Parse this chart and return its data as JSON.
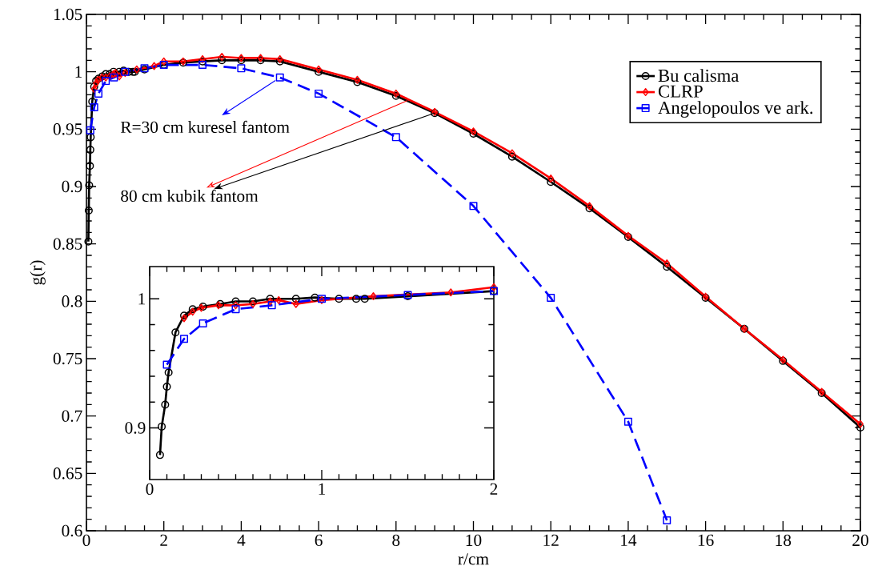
{
  "chart_data": [
    {
      "type": "line",
      "xlabel": "r/cm",
      "ylabel": "g(r)",
      "xlim": [
        0,
        20
      ],
      "xticks": [
        0,
        2,
        4,
        6,
        8,
        10,
        12,
        14,
        16,
        18,
        20
      ],
      "ylim": [
        0.6,
        1.05
      ],
      "yticks": [
        0.6,
        0.65,
        0.7,
        0.75,
        0.8,
        0.85,
        0.9,
        0.95,
        1,
        1.05
      ],
      "legend": "top right",
      "annotations": [
        {
          "text": "R=30 cm kuresel fantom",
          "x": 5,
          "y": 0.995
        },
        {
          "text": "80 cm kubik fantom",
          "x": 9,
          "y": 0.964
        }
      ],
      "series": [
        {
          "name": "Bu calisma",
          "color": "#000000",
          "marker": "circle",
          "line_style": "solid",
          "x": [
            0.05,
            0.06,
            0.07,
            0.09,
            0.1,
            0.11,
            0.15,
            0.2,
            0.25,
            0.31,
            0.41,
            0.5,
            0.6,
            0.7,
            0.85,
            0.96,
            1.1,
            1.2,
            1.25,
            1.5,
            2,
            2.5,
            3,
            3.5,
            4,
            4.5,
            5,
            6,
            7,
            8,
            9,
            10,
            11,
            12,
            13,
            14,
            15,
            16,
            17,
            18,
            19,
            20
          ],
          "values": [
            0.852,
            0.879,
            0.901,
            0.918,
            0.932,
            0.943,
            0.974,
            0.987,
            0.992,
            0.994,
            0.996,
            0.998,
            0.998,
            1.0,
            1.0,
            1.001,
            1.0,
            1.0,
            1.0,
            1.002,
            1.006,
            1.008,
            1.009,
            1.01,
            1.01,
            1.01,
            1.009,
            1.0,
            0.991,
            0.979,
            0.964,
            0.946,
            0.926,
            0.904,
            0.881,
            0.856,
            0.83,
            0.803,
            0.776,
            0.748,
            0.72,
            0.69
          ]
        },
        {
          "name": "CLRP",
          "color": "#ff0000",
          "marker": "diamond",
          "line_style": "solid",
          "x": [
            0.2,
            0.25,
            0.3,
            0.4,
            0.5,
            0.6,
            0.7,
            0.75,
            0.85,
            1,
            1.3,
            1.75,
            2,
            2.5,
            3,
            3.5,
            4,
            4.5,
            5,
            6,
            7,
            8,
            9,
            10,
            11,
            12,
            13,
            14,
            15,
            16,
            17,
            18,
            19,
            20
          ],
          "values": [
            0.985,
            0.99,
            0.993,
            0.995,
            0.995,
            0.996,
            0.998,
            0.999,
            0.996,
            0.999,
            1.002,
            1.005,
            1.009,
            1.009,
            1.011,
            1.013,
            1.012,
            1.012,
            1.011,
            1.002,
            0.993,
            0.981,
            0.965,
            0.948,
            0.929,
            0.907,
            0.883,
            0.857,
            0.833,
            0.804,
            0.776,
            0.749,
            0.721,
            0.693
          ]
        },
        {
          "name": "Angelopoulos ve ark.",
          "color": "#0000ff",
          "marker": "square",
          "line_style": "dashed",
          "x": [
            0.1,
            0.2,
            0.31,
            0.5,
            0.71,
            1,
            1.5,
            2,
            3,
            4,
            5,
            6,
            8,
            10,
            12,
            14,
            15
          ],
          "values": [
            0.949,
            0.969,
            0.981,
            0.992,
            0.995,
            1.0,
            1.003,
            1.006,
            1.006,
            1.003,
            0.995,
            0.981,
            0.943,
            0.883,
            0.803,
            0.695,
            0.609
          ]
        }
      ]
    },
    {
      "type": "line",
      "xlim": [
        0,
        2
      ],
      "xticks": [
        0,
        1,
        2
      ],
      "ylim": [
        0.86,
        1.025
      ],
      "yticks": [
        0.9,
        1
      ],
      "series": [
        {
          "color": "#000000",
          "marker": "circle",
          "line_style": "solid",
          "x": [
            0.06,
            0.07,
            0.09,
            0.1,
            0.11,
            0.15,
            0.2,
            0.25,
            0.31,
            0.41,
            0.5,
            0.6,
            0.7,
            0.85,
            0.96,
            1.1,
            1.2,
            1.25,
            1.5,
            2
          ],
          "values": [
            0.879,
            0.901,
            0.918,
            0.932,
            0.943,
            0.974,
            0.987,
            0.992,
            0.994,
            0.996,
            0.998,
            0.998,
            1.0,
            1.0,
            1.001,
            1.0,
            1.0,
            1.0,
            1.002,
            1.006
          ]
        },
        {
          "color": "#ff0000",
          "marker": "diamond",
          "line_style": "solid",
          "x": [
            0.2,
            0.25,
            0.3,
            0.4,
            0.5,
            0.6,
            0.7,
            0.75,
            0.85,
            1,
            1.3,
            1.75,
            2
          ],
          "values": [
            0.985,
            0.99,
            0.993,
            0.995,
            0.995,
            0.996,
            0.998,
            0.999,
            0.996,
            0.999,
            1.002,
            1.005,
            1.009
          ]
        },
        {
          "color": "#0000ff",
          "marker": "square",
          "line_style": "dashed",
          "x": [
            0.1,
            0.2,
            0.31,
            0.5,
            0.71,
            1,
            1.5,
            2
          ],
          "values": [
            0.949,
            0.969,
            0.981,
            0.992,
            0.995,
            1.0,
            1.003,
            1.006
          ]
        }
      ]
    }
  ]
}
